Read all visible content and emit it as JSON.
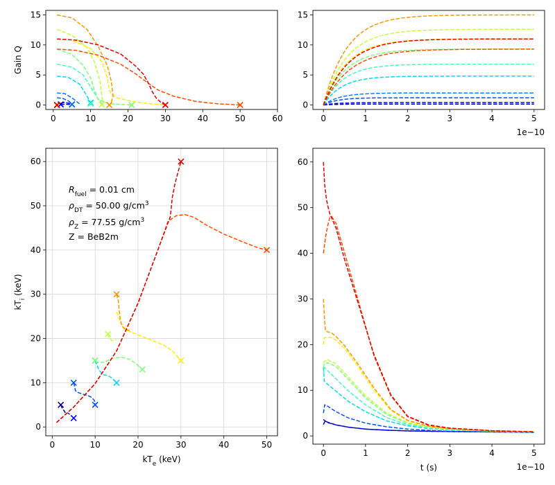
{
  "chart_data": [
    {
      "type": "line",
      "ylabel": "Gain Q",
      "xlim": [
        -2,
        60
      ],
      "ylim": [
        -0.75,
        15.75
      ],
      "xticks": [
        0,
        10,
        20,
        30,
        40,
        50,
        60
      ],
      "yticks": [
        0,
        5,
        10,
        15
      ],
      "grid": false,
      "series": [
        {
          "color": "#00008f",
          "x": [
            2,
            5
          ],
          "y": [
            0.1,
            0.1
          ],
          "start_marker": [
            2,
            0.1
          ],
          "end_marker": [
            5,
            0.1
          ]
        },
        {
          "color": "#0000ff",
          "x": [
            2,
            3,
            4,
            5
          ],
          "y": [
            0.3,
            0.4,
            0.3,
            0.1
          ],
          "start_marker": [
            2,
            0.1
          ],
          "end_marker": [
            5,
            0.1
          ]
        },
        {
          "color": "#0060ff",
          "x": [
            1,
            2.5,
            4,
            5
          ],
          "y": [
            1.2,
            1.1,
            0.7,
            0.2
          ],
          "start_marker": [
            1,
            0
          ],
          "end_marker": [
            5,
            0.1
          ]
        },
        {
          "color": "#0070ff",
          "x": [
            1,
            3,
            5,
            7
          ],
          "y": [
            2.0,
            1.9,
            1.2,
            0.2
          ],
          "start_marker": [
            1,
            0
          ],
          "end_marker": [
            5,
            0.1
          ]
        },
        {
          "color": "#00d7ff",
          "x": [
            1,
            4,
            7,
            9,
            10
          ],
          "y": [
            4.8,
            4.6,
            3.5,
            1.5,
            0.4
          ],
          "start_marker": [
            1,
            0
          ],
          "end_marker": [
            10,
            0.4
          ]
        },
        {
          "color": "#40ffb7",
          "x": [
            1,
            5,
            8,
            10,
            12,
            13
          ],
          "y": [
            6.8,
            6.3,
            5,
            3,
            1,
            0.2
          ],
          "start_marker": [
            1,
            0
          ],
          "end_marker": [
            10,
            0.2
          ]
        },
        {
          "color": "#7dff7a",
          "x": [
            1,
            5,
            8,
            10,
            11,
            12,
            15,
            21
          ],
          "y": [
            9.3,
            8.4,
            6.6,
            4.5,
            2.5,
            0.9,
            0.2,
            0.0
          ],
          "start_marker": [
            1,
            0
          ],
          "end_marker": [
            21,
            0.0
          ]
        },
        {
          "color": "#c1ff36",
          "x": [
            1,
            5,
            9,
            11,
            12.5,
            13,
            13.4
          ],
          "y": [
            12.6,
            11.6,
            9.6,
            7.2,
            4,
            1.5,
            0.2
          ],
          "start_marker": [
            1,
            0
          ],
          "end_marker": [
            13,
            0.1
          ]
        },
        {
          "color": "#ffee00",
          "x": [
            1,
            5,
            10,
            13,
            14.5,
            15,
            15.5,
            17,
            21,
            26,
            30
          ],
          "y": [
            11,
            10.8,
            9.4,
            7.2,
            4.5,
            2.5,
            1.8,
            1.2,
            0.6,
            0.2,
            0.0
          ],
          "start_marker": [
            1,
            0
          ],
          "end_marker": [
            30,
            0.0
          ]
        },
        {
          "color": "#ff9600",
          "x": [
            1,
            5,
            9,
            12,
            14.5,
            15.5,
            16,
            15.5,
            15
          ],
          "y": [
            15,
            14.5,
            12.6,
            9.8,
            6.5,
            4,
            1.5,
            0.4,
            0.0
          ],
          "start_marker": [
            1,
            0
          ],
          "end_marker": [
            15,
            0.0
          ]
        },
        {
          "color": "#ff4a00",
          "x": [
            1,
            6,
            12,
            18,
            22,
            25,
            28,
            32,
            38,
            44,
            50
          ],
          "y": [
            9.3,
            9.1,
            8.3,
            6.8,
            5.2,
            3.8,
            2.5,
            1.5,
            0.6,
            0.2,
            0.0
          ],
          "start_marker": [
            1,
            0
          ],
          "end_marker": [
            50,
            0.0
          ]
        },
        {
          "color": "#e30000",
          "x": [
            1,
            6,
            12,
            18,
            22,
            24,
            25.5,
            26.5,
            27.5,
            29,
            30
          ],
          "y": [
            11,
            10.8,
            10,
            8.5,
            6.5,
            5.2,
            3.6,
            2.2,
            1.2,
            0.3,
            0.0
          ],
          "start_marker": [
            1,
            0
          ],
          "end_marker": [
            30,
            0.0
          ]
        }
      ]
    },
    {
      "type": "line",
      "x_multiplier_label": "1e−10",
      "xlim": [
        -0.25,
        5.25
      ],
      "ylim": [
        -0.75,
        15.75
      ],
      "xticks": [
        0,
        1,
        2,
        3,
        4,
        5
      ],
      "yticks": [
        0,
        5,
        10,
        15
      ],
      "grid": false,
      "series": [
        {
          "color": "#00008f",
          "sat": 0.15,
          "rate": 3.0
        },
        {
          "color": "#0000ff",
          "sat": 0.4,
          "rate": 3.0
        },
        {
          "color": "#0050ff",
          "sat": 1.2,
          "rate": 3.0
        },
        {
          "color": "#0080ff",
          "sat": 2.0,
          "rate": 2.6
        },
        {
          "color": "#00d7ff",
          "sat": 4.8,
          "rate": 2.3
        },
        {
          "color": "#40ffb7",
          "sat": 6.8,
          "rate": 2.1
        },
        {
          "color": "#7dff7a",
          "sat": 9.3,
          "rate": 1.9
        },
        {
          "color": "#c1ff36",
          "sat": 12.6,
          "rate": 1.8
        },
        {
          "color": "#ffee00",
          "sat": 11.0,
          "rate": 1.8
        },
        {
          "color": "#ff9600",
          "sat": 15.0,
          "rate": 1.8
        },
        {
          "color": "#ff4a00",
          "sat": 9.3,
          "rate": 1.6
        },
        {
          "color": "#e30000",
          "sat": 11.0,
          "rate": 1.7
        }
      ]
    },
    {
      "type": "line",
      "xlabel": "kT_e (keV)",
      "ylabel": "kT_i (keV)",
      "xlim": [
        -1.5,
        52.5
      ],
      "ylim": [
        -2,
        63
      ],
      "xticks": [
        0,
        10,
        20,
        30,
        40,
        50
      ],
      "yticks": [
        0,
        10,
        20,
        30,
        40,
        50,
        60
      ],
      "grid": true,
      "annotation": {
        "r_sym": "R",
        "r_sub": "fuel",
        "r_val": " = 0.01 cm",
        "rho_dt_sym": "ρ",
        "rho_dt_sub": "DT",
        "rho_dt_val": " = 50.00 g/cm",
        "rho_dt_sup": "3",
        "rho_z_sym": "ρ",
        "rho_z_sub": "Z",
        "rho_z_val": " = 77.55 g/cm",
        "rho_z_sup": "3",
        "z_line": "Z = BeB2m"
      },
      "series": [
        {
          "color": "#00008f",
          "x": [
            2,
            2.3,
            2.8,
            3.2
          ],
          "y": [
            5,
            4.3,
            3.6,
            3.0
          ],
          "start_marker": [
            2,
            5
          ]
        },
        {
          "color": "#0000ff",
          "x": [
            5,
            4.6,
            4.0,
            3.6
          ],
          "y": [
            2,
            2.4,
            2.9,
            3.2
          ],
          "start_marker": [
            5,
            2
          ]
        },
        {
          "color": "#0050ff",
          "x": [
            5,
            5.2,
            5.4,
            6,
            7.5,
            8.5,
            9.2,
            9.8,
            10
          ],
          "y": [
            10,
            9.2,
            8.2,
            7.8,
            7.3,
            7.0,
            6.7,
            6.0,
            5.0
          ],
          "start_marker": [
            5,
            10
          ],
          "end_marker": [
            10,
            5
          ]
        },
        {
          "color": "#00d7ff",
          "x": [
            10,
            10.3,
            11,
            12,
            13,
            14,
            15
          ],
          "y": [
            15,
            14.2,
            12.7,
            11.8,
            11.6,
            11.0,
            10.0
          ],
          "start_marker": [
            10,
            15
          ],
          "end_marker": [
            15,
            10
          ]
        },
        {
          "color": "#7dff7a",
          "x": [
            10,
            11,
            12,
            14,
            16,
            18,
            19.5,
            21
          ],
          "y": [
            14.8,
            14.6,
            14.6,
            15.5,
            15.8,
            15.3,
            14.3,
            13.0
          ],
          "start_marker": [
            10,
            15
          ],
          "end_marker": [
            21,
            13
          ]
        },
        {
          "color": "#c1ff36",
          "x": [
            13,
            13.3,
            13.9,
            14.5,
            14.9
          ],
          "y": [
            21,
            20.2,
            19.5,
            19.6,
            19.8
          ],
          "start_marker": [
            13,
            21
          ]
        },
        {
          "color": "#ffee00",
          "x": [
            15,
            16,
            17,
            18,
            20,
            23,
            26,
            28,
            30
          ],
          "y": [
            26,
            23.5,
            22.3,
            21.6,
            20.8,
            19.7,
            18.5,
            17.2,
            15.0
          ],
          "end_marker": [
            30,
            15
          ]
        },
        {
          "color": "#ff9600",
          "x": [
            15,
            15.4,
            15.6,
            15.9,
            16.3,
            17,
            18
          ],
          "y": [
            30,
            28.5,
            26.5,
            24,
            22.8,
            22.0,
            21.8
          ],
          "start_marker": [
            15,
            30
          ]
        },
        {
          "color": "#ff4a00",
          "x": [
            1,
            5,
            10,
            15,
            20,
            25,
            27,
            29,
            31,
            33,
            36,
            40,
            45,
            48,
            50
          ],
          "y": [
            1,
            4.5,
            9.8,
            17.2,
            28,
            41,
            46.5,
            47.8,
            48,
            47.4,
            45.6,
            43.6,
            41.6,
            40.5,
            40
          ],
          "end_marker": [
            50,
            40
          ]
        },
        {
          "color": "#e30000",
          "x": [
            1,
            5,
            10,
            15,
            20,
            25,
            27.5,
            28,
            28.6,
            29.3,
            30
          ],
          "y": [
            1,
            4.5,
            9.8,
            17.2,
            28,
            41,
            47.5,
            52,
            55,
            57.5,
            60
          ],
          "start_marker": [
            30,
            60
          ]
        }
      ]
    },
    {
      "type": "line",
      "xlabel": "t (s)",
      "x_multiplier_label": "1e−10",
      "xlim": [
        -0.25,
        5.25
      ],
      "ylim": [
        -1.8,
        63
      ],
      "xticks": [
        0,
        1,
        2,
        3,
        4,
        5
      ],
      "yticks": [
        0,
        10,
        20,
        30,
        40,
        50,
        60
      ],
      "grid": false,
      "series": [
        {
          "color": "#00008f",
          "x": [
            0,
            0.04,
            0.1,
            0.3,
            0.6,
            1,
            1.5,
            2,
            3,
            4,
            5
          ],
          "y": [
            2.5,
            3.3,
            3.0,
            2.4,
            1.9,
            1.5,
            1.25,
            1.1,
            0.95,
            0.88,
            0.85
          ]
        },
        {
          "color": "#0000ff",
          "x": [
            0,
            0.04,
            0.1,
            0.3,
            0.6,
            1,
            1.5,
            2,
            3,
            4,
            5
          ],
          "y": [
            3.6,
            3.3,
            2.9,
            2.4,
            1.9,
            1.5,
            1.25,
            1.1,
            0.95,
            0.88,
            0.85
          ]
        },
        {
          "color": "#0050ff",
          "x": [
            0,
            0.03,
            0.1,
            0.3,
            0.6,
            1,
            1.5,
            2,
            2.5,
            3,
            4,
            5
          ],
          "y": [
            5,
            6.8,
            6.5,
            5.3,
            3.9,
            2.8,
            2.0,
            1.5,
            1.2,
            1.0,
            0.85,
            0.75
          ]
        },
        {
          "color": "#00d7ff",
          "x": [
            0,
            0.02,
            0.1,
            0.3,
            0.6,
            1,
            1.5,
            2,
            2.5,
            3,
            4,
            5
          ],
          "y": [
            15,
            12,
            11.3,
            9.8,
            7.5,
            5.3,
            3.3,
            2.2,
            1.6,
            1.3,
            1.0,
            0.85
          ]
        },
        {
          "color": "#40ffb7",
          "x": [
            0,
            0.02,
            0.1,
            0.3,
            0.6,
            1,
            1.5,
            2,
            2.5,
            3,
            4,
            5
          ],
          "y": [
            13.5,
            15,
            14.3,
            12.5,
            9.8,
            6.8,
            4.0,
            2.5,
            1.7,
            1.35,
            1.0,
            0.85
          ]
        },
        {
          "color": "#7dff7a",
          "x": [
            0,
            0.02,
            0.1,
            0.3,
            0.6,
            1,
            1.5,
            2,
            2.5,
            3,
            4,
            5
          ],
          "y": [
            15,
            15.8,
            16,
            15.2,
            12.3,
            8.3,
            4.7,
            2.8,
            1.9,
            1.45,
            1.05,
            0.85
          ]
        },
        {
          "color": "#c1ff36",
          "x": [
            0,
            0.02,
            0.1,
            0.3,
            0.6,
            1,
            1.5,
            2,
            2.5,
            3,
            4,
            5
          ],
          "y": [
            16,
            16.3,
            16.7,
            15.8,
            12.8,
            8.8,
            5.0,
            2.9,
            2.0,
            1.5,
            1.1,
            0.9
          ]
        },
        {
          "color": "#ffee00",
          "x": [
            0,
            0.02,
            0.1,
            0.2,
            0.3,
            0.5,
            0.8,
            1.2,
            1.6,
            2,
            2.5,
            3,
            4,
            5
          ],
          "y": [
            20,
            21.5,
            21.6,
            21.5,
            21,
            19.2,
            15.5,
            10,
            5.6,
            3.3,
            2.1,
            1.55,
            1.1,
            0.9
          ]
        },
        {
          "color": "#ff9600",
          "x": [
            0,
            0.03,
            0.05,
            0.1,
            0.2,
            0.3,
            0.5,
            0.8,
            1.2,
            1.6,
            2,
            2.5,
            3,
            4,
            5
          ],
          "y": [
            30,
            25,
            23,
            22.8,
            22.5,
            21.8,
            19.8,
            16,
            10.5,
            5.8,
            3.4,
            2.1,
            1.6,
            1.1,
            0.9
          ]
        },
        {
          "color": "#ff4a00",
          "x": [
            0,
            0.05,
            0.1,
            0.15,
            0.2,
            0.3,
            0.5,
            0.8,
            1.2,
            1.6,
            2,
            2.5,
            3,
            4,
            5
          ],
          "y": [
            40,
            43.5,
            46,
            47.8,
            48,
            46.5,
            40.2,
            30.5,
            17.5,
            8.8,
            4.2,
            2.3,
            1.65,
            1.15,
            0.9
          ]
        },
        {
          "color": "#e30000",
          "x": [
            0,
            0.03,
            0.07,
            0.1,
            0.15,
            0.3,
            0.5,
            0.8,
            1.2,
            1.6,
            2,
            2.5,
            3,
            4,
            5
          ],
          "y": [
            60,
            55,
            52,
            50.5,
            48.7,
            45.5,
            38.7,
            29.8,
            17.8,
            9.0,
            4.3,
            2.4,
            1.7,
            1.15,
            0.9
          ]
        }
      ]
    }
  ]
}
